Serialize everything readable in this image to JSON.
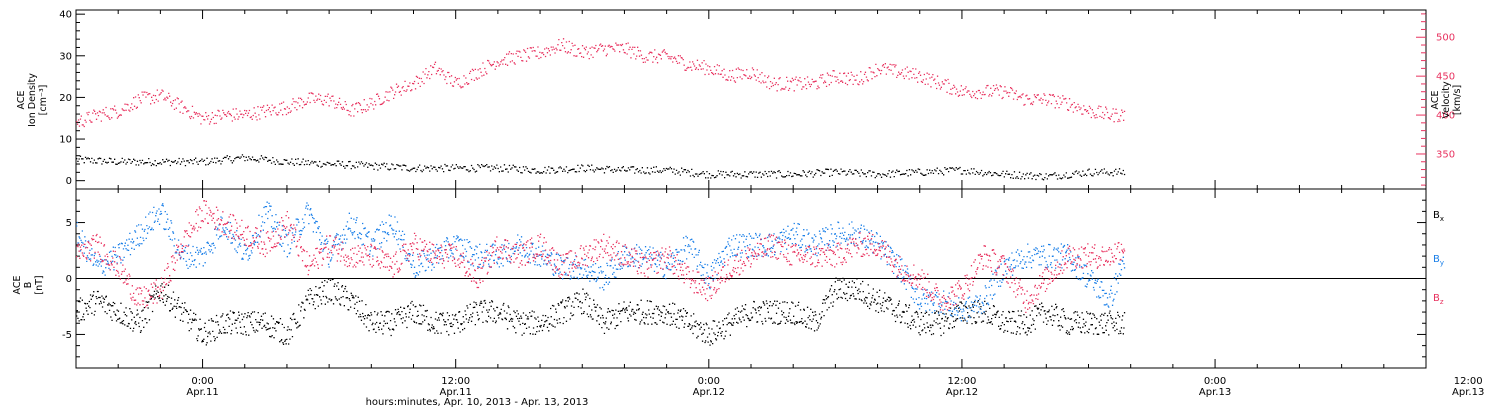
{
  "chart_data": [
    {
      "type": "scatter",
      "panel": "top",
      "ylabel_left": [
        "ACE",
        "Ion Density",
        "[cm⁻³]"
      ],
      "ylabel_right": [
        "ACE",
        "Velocity",
        "[km/s]"
      ],
      "ylim_left": [
        -2,
        41
      ],
      "ylim_right": [
        305,
        535
      ],
      "yticks_left": [
        "0",
        "10",
        "20",
        "30",
        "40"
      ],
      "yticks_right": [
        "350",
        "400",
        "450",
        "500"
      ],
      "x_range_hours": [
        0,
        64
      ],
      "data_end_hour": 50,
      "series": [
        {
          "name": "Ion Density",
          "axis": "left",
          "color": "#000000",
          "x": [
            0,
            2,
            4,
            6,
            8,
            10,
            12,
            14,
            16,
            18,
            20,
            22,
            24,
            26,
            28,
            30,
            32,
            34,
            36,
            38,
            40,
            42,
            44,
            46,
            48,
            49.7
          ],
          "values": [
            5,
            4.5,
            4.5,
            4.5,
            5.5,
            4.5,
            4,
            3.5,
            3,
            3,
            3,
            2.5,
            3,
            2.5,
            2.5,
            1.5,
            1.5,
            1.5,
            2,
            1.5,
            2,
            2.5,
            1.5,
            1,
            2,
            2
          ]
        },
        {
          "name": "Velocity",
          "axis": "right",
          "color": "#e8325f",
          "x": [
            0,
            1,
            2,
            3,
            4,
            5,
            6,
            7,
            8,
            9,
            10,
            11,
            12,
            13,
            14,
            15,
            16,
            17,
            18,
            19,
            20,
            21,
            22,
            23,
            24,
            25,
            26,
            27,
            28,
            29,
            30,
            31,
            32,
            33,
            34,
            35,
            36,
            37,
            38,
            39,
            40,
            41,
            42,
            43,
            44,
            45,
            46,
            47,
            48,
            49,
            49.7
          ],
          "values": [
            390,
            400,
            405,
            420,
            425,
            410,
            395,
            400,
            400,
            405,
            410,
            420,
            420,
            405,
            415,
            430,
            440,
            460,
            440,
            455,
            470,
            475,
            480,
            490,
            480,
            485,
            485,
            475,
            475,
            465,
            460,
            450,
            455,
            440,
            440,
            440,
            450,
            445,
            460,
            455,
            450,
            440,
            430,
            430,
            430,
            420,
            420,
            415,
            405,
            400,
            400
          ]
        }
      ]
    },
    {
      "type": "scatter",
      "panel": "bottom",
      "ylabel": [
        "ACE",
        "B",
        "[nT]"
      ],
      "ylim": [
        -8,
        8
      ],
      "yticks": [
        "-5",
        "0",
        "5"
      ],
      "x_range_hours": [
        0,
        64
      ],
      "data_end_hour": 50,
      "series": [
        {
          "name": "Bx",
          "color": "#000000",
          "x": [
            0,
            1,
            2,
            3,
            4,
            5,
            6,
            7,
            8,
            9,
            10,
            11,
            12,
            13,
            14,
            15,
            16,
            17,
            18,
            19,
            20,
            21,
            22,
            23,
            24,
            25,
            26,
            27,
            28,
            29,
            30,
            31,
            32,
            33,
            34,
            35,
            36,
            37,
            38,
            39,
            40,
            41,
            42,
            43,
            44,
            45,
            46,
            47,
            48,
            49,
            49.7
          ],
          "values": [
            -3,
            -2,
            -3,
            -4,
            -1,
            -3,
            -5,
            -4,
            -4,
            -4,
            -5,
            -2,
            -1,
            -2,
            -4,
            -4,
            -3,
            -4,
            -4,
            -3,
            -3,
            -4,
            -4,
            -3,
            -2,
            -4,
            -3,
            -3,
            -3,
            -4,
            -5,
            -4,
            -3,
            -3,
            -3,
            -4,
            -1,
            -1,
            -2,
            -3,
            -4,
            -4,
            -3,
            -3,
            -4,
            -4,
            -3,
            -4,
            -4,
            -4,
            -4
          ]
        },
        {
          "name": "By",
          "color": "#1a7fe8",
          "x": [
            0,
            1,
            2,
            3,
            4,
            5,
            6,
            7,
            8,
            9,
            10,
            11,
            12,
            13,
            14,
            15,
            16,
            17,
            18,
            19,
            20,
            21,
            22,
            23,
            24,
            25,
            26,
            27,
            28,
            29,
            30,
            31,
            32,
            33,
            34,
            35,
            36,
            37,
            38,
            39,
            40,
            41,
            42,
            43,
            44,
            45,
            46,
            47,
            48,
            49,
            49.7
          ],
          "values": [
            4,
            1,
            2,
            4,
            6,
            2,
            2,
            5,
            2,
            6,
            3,
            6,
            2,
            5,
            3,
            5,
            1,
            2,
            3,
            2,
            2,
            3,
            2,
            1,
            1,
            0,
            2,
            2,
            1,
            3,
            0,
            3,
            3,
            3,
            4,
            3,
            4,
            4,
            3,
            1,
            -2,
            -2,
            -3,
            -2,
            1,
            2,
            2,
            2,
            0,
            -2,
            2
          ]
        },
        {
          "name": "Bz",
          "color": "#e8325f",
          "x": [
            0,
            1,
            2,
            3,
            4,
            5,
            6,
            7,
            8,
            9,
            10,
            11,
            12,
            13,
            14,
            15,
            16,
            17,
            18,
            19,
            20,
            21,
            22,
            23,
            24,
            25,
            26,
            27,
            28,
            29,
            30,
            31,
            32,
            33,
            34,
            35,
            36,
            37,
            38,
            39,
            40,
            41,
            42,
            43,
            44,
            45,
            46,
            47,
            48,
            49,
            49.7
          ],
          "values": [
            2,
            3,
            1,
            -2,
            -1,
            3,
            6,
            5,
            4,
            3,
            5,
            1,
            3,
            2,
            2,
            1,
            3,
            2,
            2,
            0,
            3,
            2,
            3,
            1,
            2,
            3,
            2,
            1,
            2,
            0,
            -1,
            1,
            2,
            3,
            2,
            2,
            2,
            3,
            3,
            1,
            0,
            -2,
            -1,
            2,
            1,
            -2,
            0,
            2,
            2,
            2,
            3
          ]
        }
      ]
    }
  ],
  "legend": {
    "bx": {
      "base": "B",
      "sub": "x",
      "color": "#000000"
    },
    "by": {
      "base": "B",
      "sub": "y",
      "color": "#1a7fe8"
    },
    "bz": {
      "base": "B",
      "sub": "z",
      "color": "#e8325f"
    }
  },
  "x_axis": {
    "major_ticks": [
      {
        "hour": 6,
        "time": "0:00",
        "date": "Apr.11"
      },
      {
        "hour": 18,
        "time": "12:00",
        "date": "Apr.11"
      },
      {
        "hour": 30,
        "time": "0:00",
        "date": "Apr.12"
      },
      {
        "hour": 42,
        "time": "12:00",
        "date": "Apr.12"
      },
      {
        "hour": 54,
        "time": "0:00",
        "date": "Apr.13"
      },
      {
        "hour": 66,
        "time": "12:00",
        "date": "Apr.13"
      }
    ],
    "title": "hours:minutes, Apr. 10, 2013 - Apr. 13, 2013"
  }
}
